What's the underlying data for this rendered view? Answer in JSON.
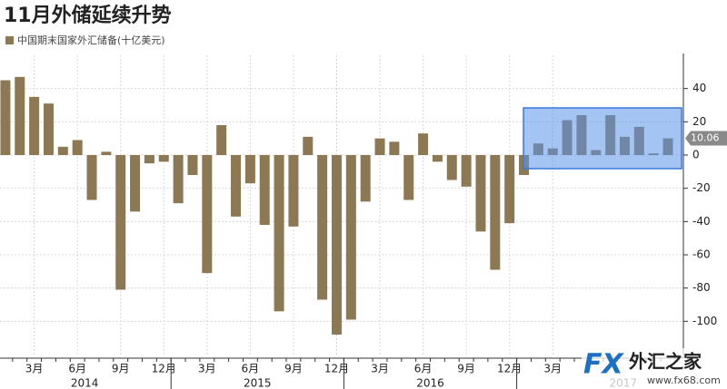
{
  "chart_data": {
    "type": "bar",
    "title": "11月外储延续升势",
    "series": [
      {
        "name": "中国期末国家外汇储备(十亿美元)",
        "color": "#8c7853",
        "values": [
          45,
          47,
          35,
          31,
          5,
          9,
          -27,
          2,
          -81,
          -34,
          -5,
          -4,
          -29,
          -12,
          -71,
          18,
          -37,
          -17,
          -42,
          -94,
          -43,
          11,
          -87,
          -108,
          -99,
          -28,
          10,
          8,
          -27,
          13,
          -4,
          -15,
          -19,
          -46,
          -69,
          -41,
          -12,
          7,
          4,
          21,
          24,
          3,
          24,
          11,
          17,
          1,
          10.06
        ]
      }
    ],
    "categories": [
      null,
      null,
      "3月",
      null,
      null,
      "6月",
      null,
      null,
      "9月",
      null,
      null,
      "12月",
      null,
      null,
      "3月",
      null,
      null,
      "6月",
      null,
      null,
      "9月",
      null,
      null,
      "12月",
      null,
      null,
      "3月",
      null,
      null,
      "6月",
      null,
      null,
      "9月",
      null,
      null,
      "12月",
      null,
      null,
      "3月",
      null,
      null,
      null,
      null,
      null,
      null,
      null,
      null
    ],
    "years": [
      "2014",
      "2015",
      "2016",
      "2017"
    ],
    "ylim": [
      -120,
      60
    ],
    "yticks": [
      -100,
      -80,
      -60,
      -40,
      -20,
      0,
      20,
      40
    ],
    "grid": true,
    "last_value_tag": true,
    "watermark": {
      "brand": "外汇之家",
      "url": "www.fx68.com"
    }
  }
}
